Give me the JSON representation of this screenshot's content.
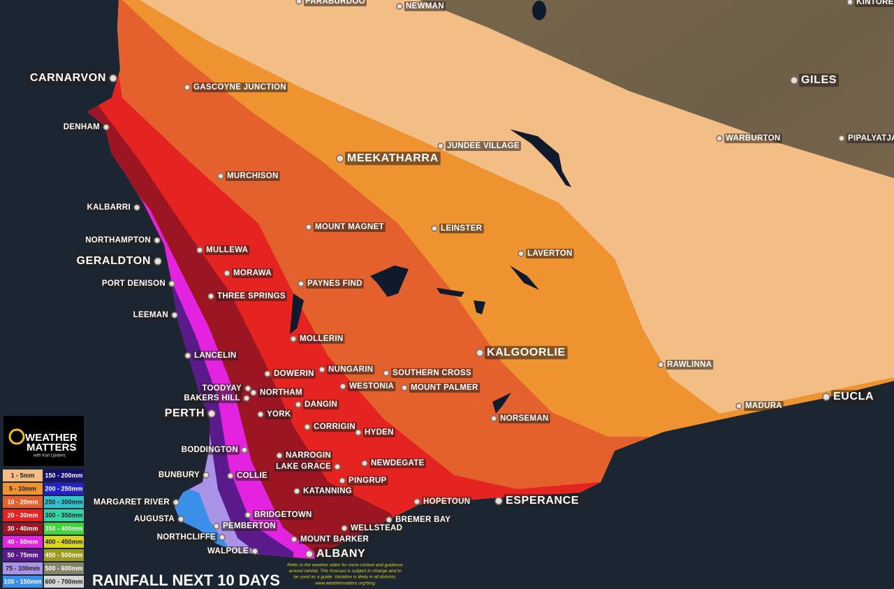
{
  "logo": {
    "line1": "WEATHER",
    "line2": "MATTERS",
    "tagline": "with Karl Lijnders"
  },
  "title": "RAINFALL NEXT 10 DAYS",
  "disclaimer": {
    "lines": [
      "Refer to the weather video for more context and guidance",
      "around rainfall.  This forecast is subject to change and to",
      "be used as a guide.  Variation is likely in all districts."
    ],
    "url": "www.weathermatters.org/blog"
  },
  "legend": [
    {
      "label": "1 - 5mm",
      "color": "#f3bd86"
    },
    {
      "label": "5 - 10mm",
      "color": "#ef9330"
    },
    {
      "label": "10 - 20mm",
      "color": "#e4602c"
    },
    {
      "label": "20 - 30mm",
      "color": "#e52421"
    },
    {
      "label": "30 - 40mm",
      "color": "#9c1522"
    },
    {
      "label": "40 - 50mm",
      "color": "#e323e0"
    },
    {
      "label": "50 - 75mm",
      "color": "#5a1a8c"
    },
    {
      "label": "75 - 100mm",
      "color": "#a893e6"
    },
    {
      "label": "100 - 150mm",
      "color": "#3b8fe8"
    },
    {
      "label": "150 - 200mm",
      "color": "#14126e"
    },
    {
      "label": "200 - 250mm",
      "color": "#2222c8"
    },
    {
      "label": "250 - 300mm",
      "color": "#2fc2cf"
    },
    {
      "label": "300 - 350mm",
      "color": "#35d3a6"
    },
    {
      "label": "350 - 400mm",
      "color": "#3ed43a"
    },
    {
      "label": "400 - 450mm",
      "color": "#dcd61f"
    },
    {
      "label": "450 - 500mm",
      "color": "#9e9a1e"
    },
    {
      "label": "500 - 600mm",
      "color": "#84846a"
    },
    {
      "label": "600 - 700mm",
      "color": "#d4d4d4"
    }
  ],
  "major_places": [
    "CARNARVON",
    "GERALDTON",
    "PERTH",
    "MEEKATHARRA",
    "KALGOORLIE",
    "ESPERANCE",
    "ALBANY",
    "GILES",
    "EUCLA"
  ],
  "places": [
    "PARABURDOO",
    "NEWMAN",
    "KINTORE",
    "GASCOYNE JUNCTION",
    "DENHAM",
    "JUNDEE VILLAGE",
    "WARBURTON",
    "PIPALYATJA",
    "MURCHISON",
    "KALBARRI",
    "NORTHAMPTON",
    "MULLEWA",
    "MOUNT MAGNET",
    "LEINSTER",
    "LAVERTON",
    "MORAWA",
    "PORT DENISON",
    "PAYNES FIND",
    "THREE SPRINGS",
    "LEEMAN",
    "MOLLERIN",
    "LANCELIN",
    "DOWERIN",
    "NUNGARIN",
    "SOUTHERN CROSS",
    "RAWLINNA",
    "TOODYAY",
    "BAKERS HILL",
    "NORTHAM",
    "WESTONIA",
    "MOUNT PALMER",
    "DANGIN",
    "MADURA",
    "YORK",
    "CORRIGIN",
    "HYDEN",
    "NORSEMAN",
    "BODDINGTON",
    "NARROGIN",
    "LAKE GRACE",
    "NEWDEGATE",
    "BUNBURY",
    "COLLIE",
    "PINGRUP",
    "KATANNING",
    "HOPETOUN",
    "MARGARET RIVER",
    "AUGUSTA",
    "BREMER BAY",
    "BRIDGETOWN",
    "PEMBERTON",
    "WELLSTEAD",
    "NORTHCLIFFE",
    "MOUNT BARKER",
    "WALPOLE"
  ]
}
